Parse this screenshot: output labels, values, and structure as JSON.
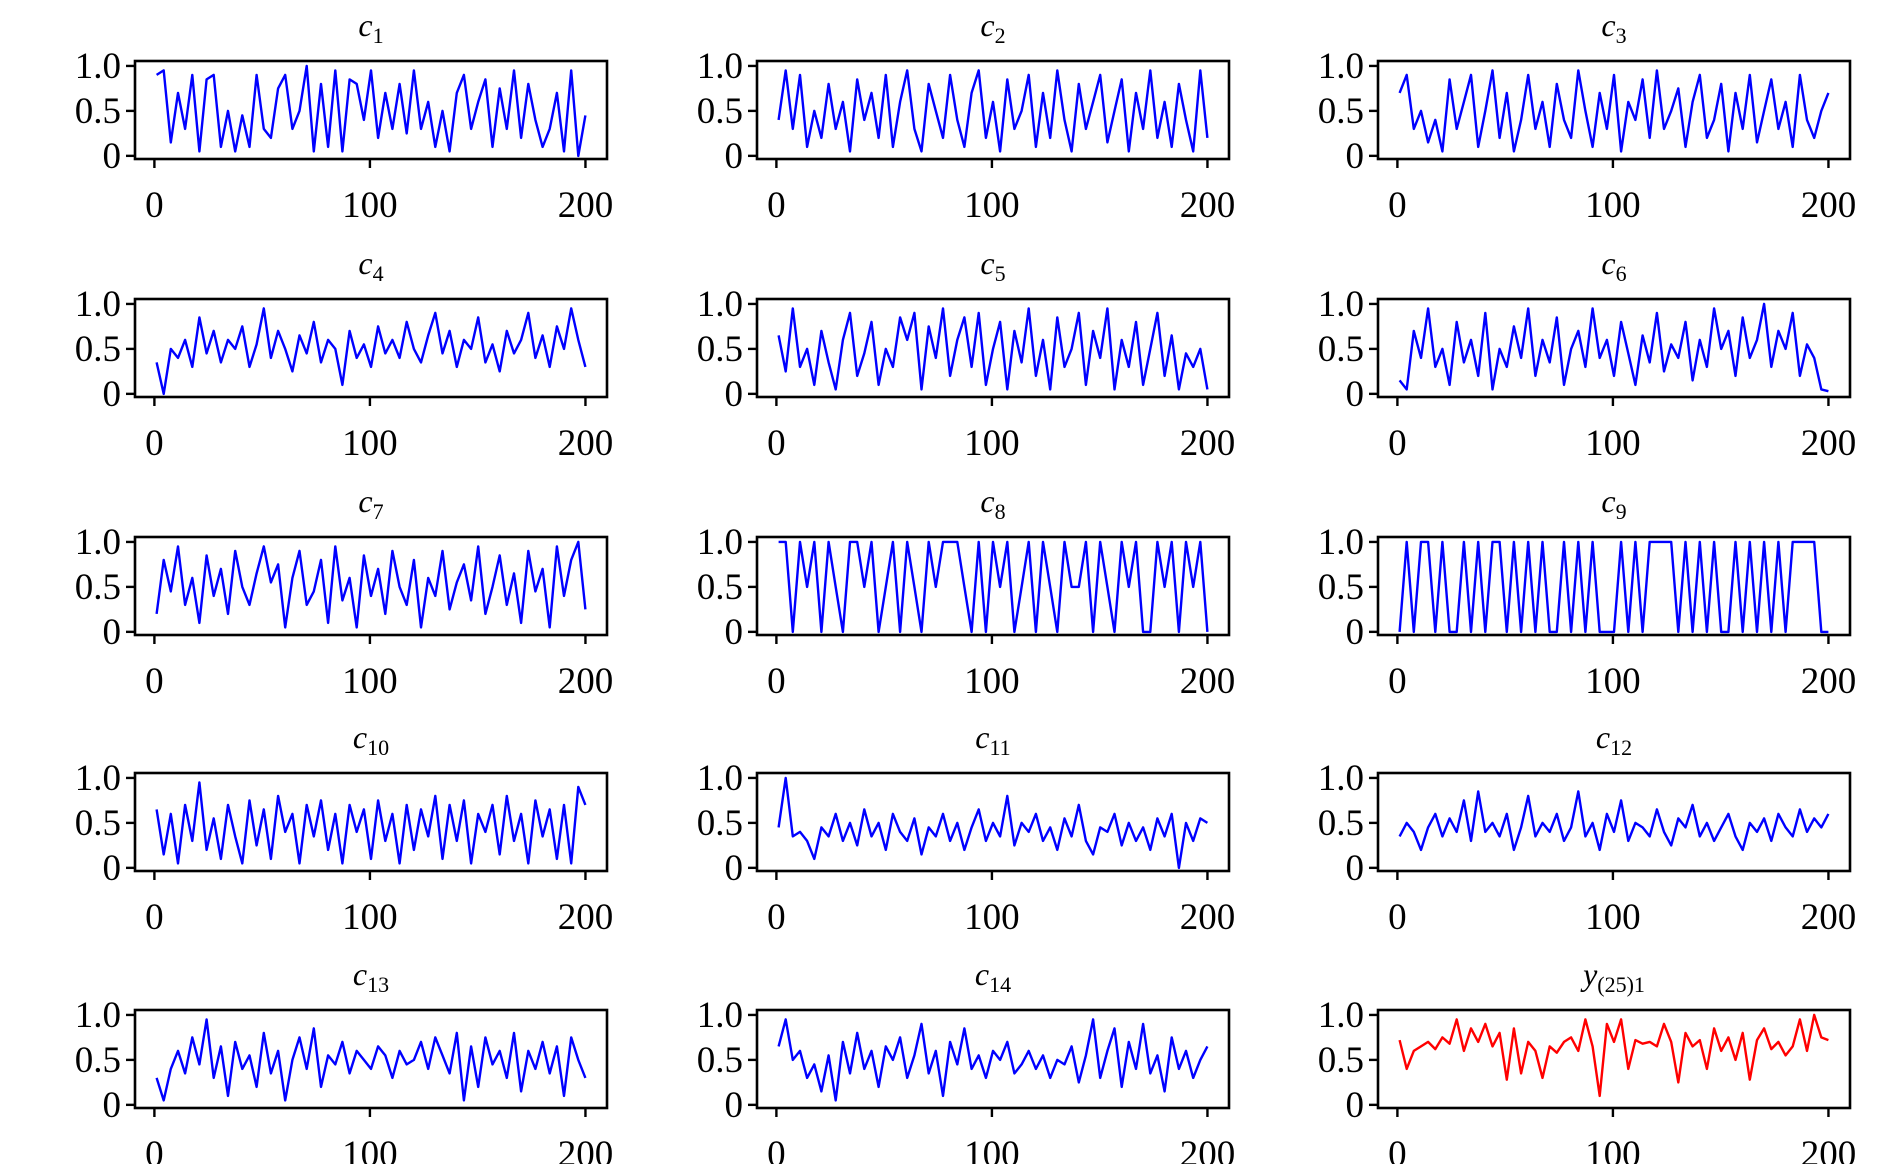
{
  "chart_data": {
    "type": "line",
    "layout": "5x3 grid of subplots",
    "x_range": [
      1,
      200
    ],
    "xlim": [
      -9,
      210
    ],
    "ylim": [
      -0.035,
      1.055
    ],
    "xticks": [
      0,
      100,
      200
    ],
    "xtick_labels": [
      "0",
      "100",
      "200"
    ],
    "yticks": [
      0,
      0.5,
      1.0
    ],
    "ytick_labels": [
      "0",
      "0.5",
      "1.0"
    ],
    "grid": false,
    "colors": {
      "feature": "#0000ff",
      "target": "#ff0000"
    },
    "series": [
      {
        "name": "c1",
        "title": {
          "main": "c",
          "sub": "1"
        },
        "color": "#0000ff",
        "values": [
          0.9,
          0.95,
          0.15,
          0.7,
          0.3,
          0.9,
          0.05,
          0.85,
          0.9,
          0.1,
          0.5,
          0.05,
          0.45,
          0.1,
          0.9,
          0.3,
          0.2,
          0.75,
          0.9,
          0.3,
          0.5,
          1.0,
          0.05,
          0.8,
          0.1,
          0.95,
          0.05,
          0.85,
          0.8,
          0.4,
          0.95,
          0.2,
          0.7,
          0.3,
          0.8,
          0.25,
          0.95,
          0.3,
          0.6,
          0.1,
          0.5,
          0.05,
          0.7,
          0.9,
          0.3,
          0.6,
          0.85,
          0.1,
          0.75,
          0.3,
          0.95,
          0.2,
          0.8,
          0.4,
          0.1,
          0.3,
          0.7,
          0.05,
          0.95,
          0.0,
          0.45
        ]
      },
      {
        "name": "c2",
        "title": {
          "main": "c",
          "sub": "2"
        },
        "color": "#0000ff",
        "values": [
          0.4,
          0.95,
          0.3,
          0.9,
          0.1,
          0.5,
          0.2,
          0.8,
          0.3,
          0.6,
          0.05,
          0.85,
          0.4,
          0.7,
          0.2,
          0.9,
          0.1,
          0.6,
          0.95,
          0.3,
          0.05,
          0.8,
          0.5,
          0.2,
          0.9,
          0.4,
          0.1,
          0.7,
          0.95,
          0.2,
          0.6,
          0.05,
          0.85,
          0.3,
          0.5,
          0.9,
          0.1,
          0.7,
          0.2,
          0.95,
          0.4,
          0.05,
          0.8,
          0.3,
          0.6,
          0.9,
          0.15,
          0.5,
          0.85,
          0.05,
          0.7,
          0.3,
          0.95,
          0.2,
          0.6,
          0.1,
          0.8,
          0.4,
          0.05,
          0.95,
          0.2
        ]
      },
      {
        "name": "c3",
        "title": {
          "main": "c",
          "sub": "3"
        },
        "color": "#0000ff",
        "values": [
          0.7,
          0.9,
          0.3,
          0.5,
          0.15,
          0.4,
          0.05,
          0.85,
          0.3,
          0.6,
          0.9,
          0.1,
          0.5,
          0.95,
          0.2,
          0.7,
          0.05,
          0.4,
          0.9,
          0.3,
          0.6,
          0.1,
          0.8,
          0.4,
          0.2,
          0.95,
          0.5,
          0.1,
          0.7,
          0.3,
          0.9,
          0.05,
          0.6,
          0.4,
          0.85,
          0.2,
          0.95,
          0.3,
          0.5,
          0.75,
          0.1,
          0.6,
          0.9,
          0.2,
          0.4,
          0.8,
          0.05,
          0.7,
          0.3,
          0.9,
          0.15,
          0.5,
          0.85,
          0.3,
          0.6,
          0.1,
          0.9,
          0.4,
          0.2,
          0.5,
          0.7
        ]
      },
      {
        "name": "c4",
        "title": {
          "main": "c",
          "sub": "4"
        },
        "color": "#0000ff",
        "values": [
          0.35,
          0.0,
          0.5,
          0.4,
          0.6,
          0.3,
          0.85,
          0.45,
          0.7,
          0.35,
          0.6,
          0.5,
          0.75,
          0.3,
          0.55,
          0.95,
          0.4,
          0.7,
          0.5,
          0.25,
          0.65,
          0.45,
          0.8,
          0.35,
          0.6,
          0.5,
          0.1,
          0.7,
          0.4,
          0.55,
          0.3,
          0.75,
          0.45,
          0.6,
          0.4,
          0.8,
          0.5,
          0.35,
          0.65,
          0.9,
          0.45,
          0.7,
          0.3,
          0.6,
          0.5,
          0.85,
          0.35,
          0.55,
          0.25,
          0.7,
          0.45,
          0.6,
          0.9,
          0.4,
          0.65,
          0.3,
          0.75,
          0.5,
          0.95,
          0.6,
          0.3
        ]
      },
      {
        "name": "c5",
        "title": {
          "main": "c",
          "sub": "5"
        },
        "color": "#0000ff",
        "values": [
          0.65,
          0.25,
          0.95,
          0.3,
          0.5,
          0.1,
          0.7,
          0.35,
          0.05,
          0.6,
          0.9,
          0.2,
          0.45,
          0.8,
          0.1,
          0.5,
          0.3,
          0.85,
          0.6,
          0.9,
          0.05,
          0.75,
          0.4,
          0.95,
          0.2,
          0.6,
          0.85,
          0.3,
          0.9,
          0.1,
          0.5,
          0.8,
          0.05,
          0.7,
          0.35,
          0.95,
          0.2,
          0.6,
          0.05,
          0.85,
          0.3,
          0.5,
          0.9,
          0.1,
          0.7,
          0.4,
          0.95,
          0.05,
          0.6,
          0.3,
          0.8,
          0.1,
          0.5,
          0.9,
          0.2,
          0.65,
          0.05,
          0.45,
          0.3,
          0.5,
          0.05
        ]
      },
      {
        "name": "c6",
        "title": {
          "main": "c",
          "sub": "6"
        },
        "color": "#0000ff",
        "values": [
          0.15,
          0.05,
          0.7,
          0.4,
          0.95,
          0.3,
          0.5,
          0.1,
          0.8,
          0.35,
          0.6,
          0.2,
          0.9,
          0.05,
          0.5,
          0.3,
          0.75,
          0.4,
          0.95,
          0.2,
          0.6,
          0.35,
          0.85,
          0.1,
          0.5,
          0.7,
          0.3,
          0.95,
          0.4,
          0.6,
          0.2,
          0.8,
          0.45,
          0.1,
          0.65,
          0.35,
          0.9,
          0.25,
          0.55,
          0.4,
          0.8,
          0.15,
          0.6,
          0.3,
          0.95,
          0.5,
          0.7,
          0.2,
          0.85,
          0.4,
          0.6,
          1.0,
          0.3,
          0.7,
          0.5,
          0.9,
          0.2,
          0.55,
          0.4,
          0.05,
          0.03
        ]
      },
      {
        "name": "c7",
        "title": {
          "main": "c",
          "sub": "7"
        },
        "color": "#0000ff",
        "values": [
          0.2,
          0.8,
          0.45,
          0.95,
          0.3,
          0.6,
          0.1,
          0.85,
          0.4,
          0.7,
          0.2,
          0.9,
          0.5,
          0.3,
          0.65,
          0.95,
          0.55,
          0.75,
          0.05,
          0.6,
          0.9,
          0.3,
          0.45,
          0.8,
          0.1,
          0.95,
          0.35,
          0.6,
          0.05,
          0.85,
          0.4,
          0.7,
          0.2,
          0.9,
          0.5,
          0.3,
          0.8,
          0.05,
          0.6,
          0.4,
          0.9,
          0.25,
          0.55,
          0.75,
          0.35,
          0.95,
          0.2,
          0.5,
          0.85,
          0.3,
          0.65,
          0.1,
          0.9,
          0.45,
          0.7,
          0.05,
          0.95,
          0.4,
          0.8,
          1.0,
          0.25
        ]
      },
      {
        "name": "c8",
        "title": {
          "main": "c",
          "sub": "8"
        },
        "color": "#0000ff",
        "values": [
          1.0,
          1.0,
          0.0,
          1.0,
          0.5,
          1.0,
          0.0,
          1.0,
          0.5,
          0.0,
          1.0,
          1.0,
          0.5,
          1.0,
          0.0,
          0.5,
          1.0,
          0.0,
          1.0,
          0.5,
          0.0,
          1.0,
          0.5,
          1.0,
          1.0,
          1.0,
          0.5,
          0.0,
          1.0,
          0.0,
          1.0,
          0.5,
          1.0,
          0.0,
          0.5,
          1.0,
          0.0,
          1.0,
          0.5,
          0.0,
          1.0,
          0.5,
          0.5,
          1.0,
          0.0,
          1.0,
          0.5,
          0.0,
          1.0,
          0.5,
          1.0,
          0.0,
          0.0,
          1.0,
          0.5,
          1.0,
          0.0,
          1.0,
          0.5,
          1.0,
          0.0
        ]
      },
      {
        "name": "c9",
        "title": {
          "main": "c",
          "sub": "9"
        },
        "color": "#0000ff",
        "values": [
          0.0,
          1.0,
          0.0,
          1.0,
          1.0,
          0.0,
          1.0,
          0.0,
          0.0,
          1.0,
          0.0,
          1.0,
          0.0,
          1.0,
          1.0,
          0.0,
          1.0,
          0.0,
          1.0,
          0.0,
          1.0,
          0.0,
          0.0,
          1.0,
          0.0,
          1.0,
          0.0,
          1.0,
          0.0,
          0.0,
          0.0,
          1.0,
          0.0,
          1.0,
          0.0,
          1.0,
          1.0,
          1.0,
          1.0,
          0.0,
          1.0,
          0.0,
          1.0,
          0.0,
          1.0,
          0.0,
          0.0,
          1.0,
          0.0,
          1.0,
          0.0,
          1.0,
          0.0,
          1.0,
          0.0,
          1.0,
          1.0,
          1.0,
          1.0,
          0.0,
          0.0
        ]
      },
      {
        "name": "c10",
        "title": {
          "main": "c",
          "sub": "10"
        },
        "color": "#0000ff",
        "values": [
          0.65,
          0.15,
          0.6,
          0.05,
          0.7,
          0.3,
          0.95,
          0.2,
          0.55,
          0.1,
          0.7,
          0.35,
          0.05,
          0.75,
          0.25,
          0.65,
          0.1,
          0.8,
          0.4,
          0.6,
          0.05,
          0.7,
          0.35,
          0.75,
          0.2,
          0.6,
          0.05,
          0.7,
          0.4,
          0.65,
          0.1,
          0.75,
          0.3,
          0.6,
          0.05,
          0.7,
          0.2,
          0.65,
          0.35,
          0.8,
          0.1,
          0.7,
          0.3,
          0.75,
          0.05,
          0.6,
          0.4,
          0.7,
          0.15,
          0.8,
          0.3,
          0.6,
          0.05,
          0.75,
          0.35,
          0.65,
          0.1,
          0.7,
          0.05,
          0.9,
          0.7
        ]
      },
      {
        "name": "c11",
        "title": {
          "main": "c",
          "sub": "11"
        },
        "color": "#0000ff",
        "values": [
          0.45,
          1.0,
          0.35,
          0.4,
          0.3,
          0.1,
          0.45,
          0.35,
          0.6,
          0.3,
          0.5,
          0.25,
          0.65,
          0.35,
          0.5,
          0.2,
          0.6,
          0.4,
          0.3,
          0.55,
          0.15,
          0.45,
          0.35,
          0.6,
          0.3,
          0.5,
          0.2,
          0.45,
          0.65,
          0.3,
          0.5,
          0.35,
          0.8,
          0.25,
          0.5,
          0.4,
          0.6,
          0.3,
          0.45,
          0.2,
          0.55,
          0.35,
          0.7,
          0.3,
          0.15,
          0.45,
          0.4,
          0.6,
          0.25,
          0.5,
          0.3,
          0.45,
          0.2,
          0.55,
          0.35,
          0.6,
          0.0,
          0.5,
          0.3,
          0.55,
          0.5
        ]
      },
      {
        "name": "c12",
        "title": {
          "main": "c",
          "sub": "12"
        },
        "color": "#0000ff",
        "values": [
          0.35,
          0.5,
          0.4,
          0.2,
          0.45,
          0.6,
          0.35,
          0.55,
          0.4,
          0.75,
          0.3,
          0.85,
          0.4,
          0.5,
          0.35,
          0.6,
          0.2,
          0.45,
          0.8,
          0.35,
          0.5,
          0.4,
          0.6,
          0.3,
          0.45,
          0.85,
          0.35,
          0.5,
          0.2,
          0.6,
          0.4,
          0.75,
          0.3,
          0.5,
          0.45,
          0.35,
          0.65,
          0.4,
          0.25,
          0.55,
          0.45,
          0.7,
          0.35,
          0.5,
          0.3,
          0.45,
          0.6,
          0.35,
          0.2,
          0.5,
          0.4,
          0.55,
          0.3,
          0.6,
          0.45,
          0.35,
          0.65,
          0.4,
          0.55,
          0.45,
          0.6
        ]
      },
      {
        "name": "c13",
        "title": {
          "main": "c",
          "sub": "13"
        },
        "color": "#0000ff",
        "values": [
          0.3,
          0.05,
          0.4,
          0.6,
          0.35,
          0.75,
          0.45,
          0.95,
          0.3,
          0.65,
          0.1,
          0.7,
          0.4,
          0.55,
          0.2,
          0.8,
          0.35,
          0.6,
          0.05,
          0.5,
          0.75,
          0.4,
          0.85,
          0.2,
          0.55,
          0.45,
          0.7,
          0.35,
          0.6,
          0.5,
          0.4,
          0.65,
          0.55,
          0.3,
          0.6,
          0.45,
          0.5,
          0.7,
          0.4,
          0.75,
          0.55,
          0.35,
          0.8,
          0.05,
          0.65,
          0.2,
          0.75,
          0.45,
          0.6,
          0.3,
          0.8,
          0.15,
          0.6,
          0.4,
          0.7,
          0.35,
          0.65,
          0.1,
          0.75,
          0.5,
          0.3
        ]
      },
      {
        "name": "c14",
        "title": {
          "main": "c",
          "sub": "14"
        },
        "color": "#0000ff",
        "values": [
          0.65,
          0.95,
          0.5,
          0.6,
          0.3,
          0.45,
          0.15,
          0.55,
          0.05,
          0.7,
          0.35,
          0.8,
          0.4,
          0.6,
          0.2,
          0.65,
          0.5,
          0.75,
          0.3,
          0.55,
          0.9,
          0.35,
          0.6,
          0.1,
          0.7,
          0.45,
          0.85,
          0.4,
          0.55,
          0.3,
          0.6,
          0.5,
          0.7,
          0.35,
          0.45,
          0.6,
          0.4,
          0.55,
          0.3,
          0.5,
          0.45,
          0.65,
          0.25,
          0.55,
          0.95,
          0.3,
          0.6,
          0.85,
          0.2,
          0.7,
          0.4,
          0.9,
          0.35,
          0.55,
          0.15,
          0.75,
          0.4,
          0.6,
          0.3,
          0.5,
          0.65
        ]
      },
      {
        "name": "y(25)1",
        "title": {
          "main": "y",
          "sub": "(25)1"
        },
        "color": "#ff0000",
        "values": [
          0.72,
          0.4,
          0.6,
          0.65,
          0.7,
          0.62,
          0.75,
          0.68,
          0.95,
          0.6,
          0.85,
          0.7,
          0.9,
          0.65,
          0.8,
          0.28,
          0.85,
          0.35,
          0.7,
          0.6,
          0.3,
          0.65,
          0.58,
          0.7,
          0.75,
          0.6,
          0.95,
          0.65,
          0.1,
          0.9,
          0.7,
          0.95,
          0.4,
          0.72,
          0.68,
          0.7,
          0.65,
          0.9,
          0.7,
          0.25,
          0.8,
          0.65,
          0.72,
          0.4,
          0.85,
          0.6,
          0.75,
          0.5,
          0.8,
          0.28,
          0.72,
          0.85,
          0.62,
          0.7,
          0.55,
          0.65,
          0.95,
          0.6,
          1.0,
          0.75,
          0.72
        ]
      }
    ]
  }
}
